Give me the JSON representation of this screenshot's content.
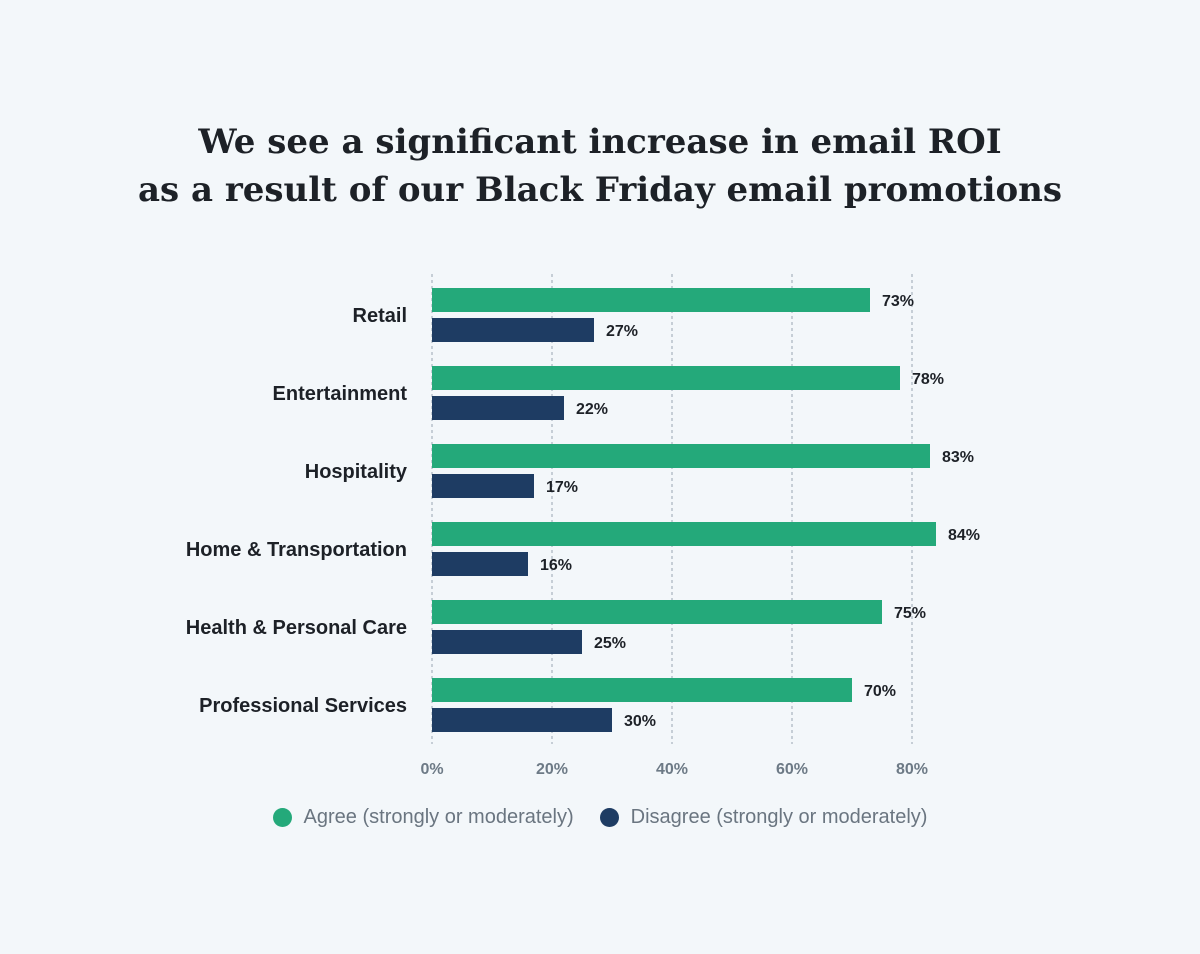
{
  "title_line1": "We see a significant increase in email ROI",
  "title_line2": "as a result of our Black Friday email promotions",
  "colors": {
    "agree": "#24a97a",
    "disagree": "#1e3c63",
    "grid": "#a9b4bd",
    "category_text": "#1d2127",
    "tick_text": "#6d7a86",
    "value_text": "#1d2127"
  },
  "chart_data": {
    "type": "bar",
    "orientation": "horizontal",
    "categories": [
      "Retail",
      "Entertainment",
      "Hospitality",
      "Home & Transportation",
      "Health & Personal Care",
      "Professional Services"
    ],
    "series": [
      {
        "name": "Agree (strongly or moderately)",
        "values": [
          73,
          78,
          83,
          84,
          75,
          70
        ],
        "labels": [
          "73%",
          "78%",
          "83%",
          "84%",
          "75%",
          "70%"
        ]
      },
      {
        "name": "Disagree (strongly or moderately)",
        "values": [
          27,
          22,
          17,
          16,
          25,
          30
        ],
        "labels": [
          "27%",
          "22%",
          "17%",
          "16%",
          "25%",
          "30%"
        ]
      }
    ],
    "xticks": [
      0,
      20,
      40,
      60,
      80
    ],
    "xtick_labels": [
      "0%",
      "20%",
      "40%",
      "60%",
      "80%"
    ],
    "xlim": [
      0,
      100
    ],
    "grid": "vertical dashed",
    "legend_position": "bottom"
  }
}
